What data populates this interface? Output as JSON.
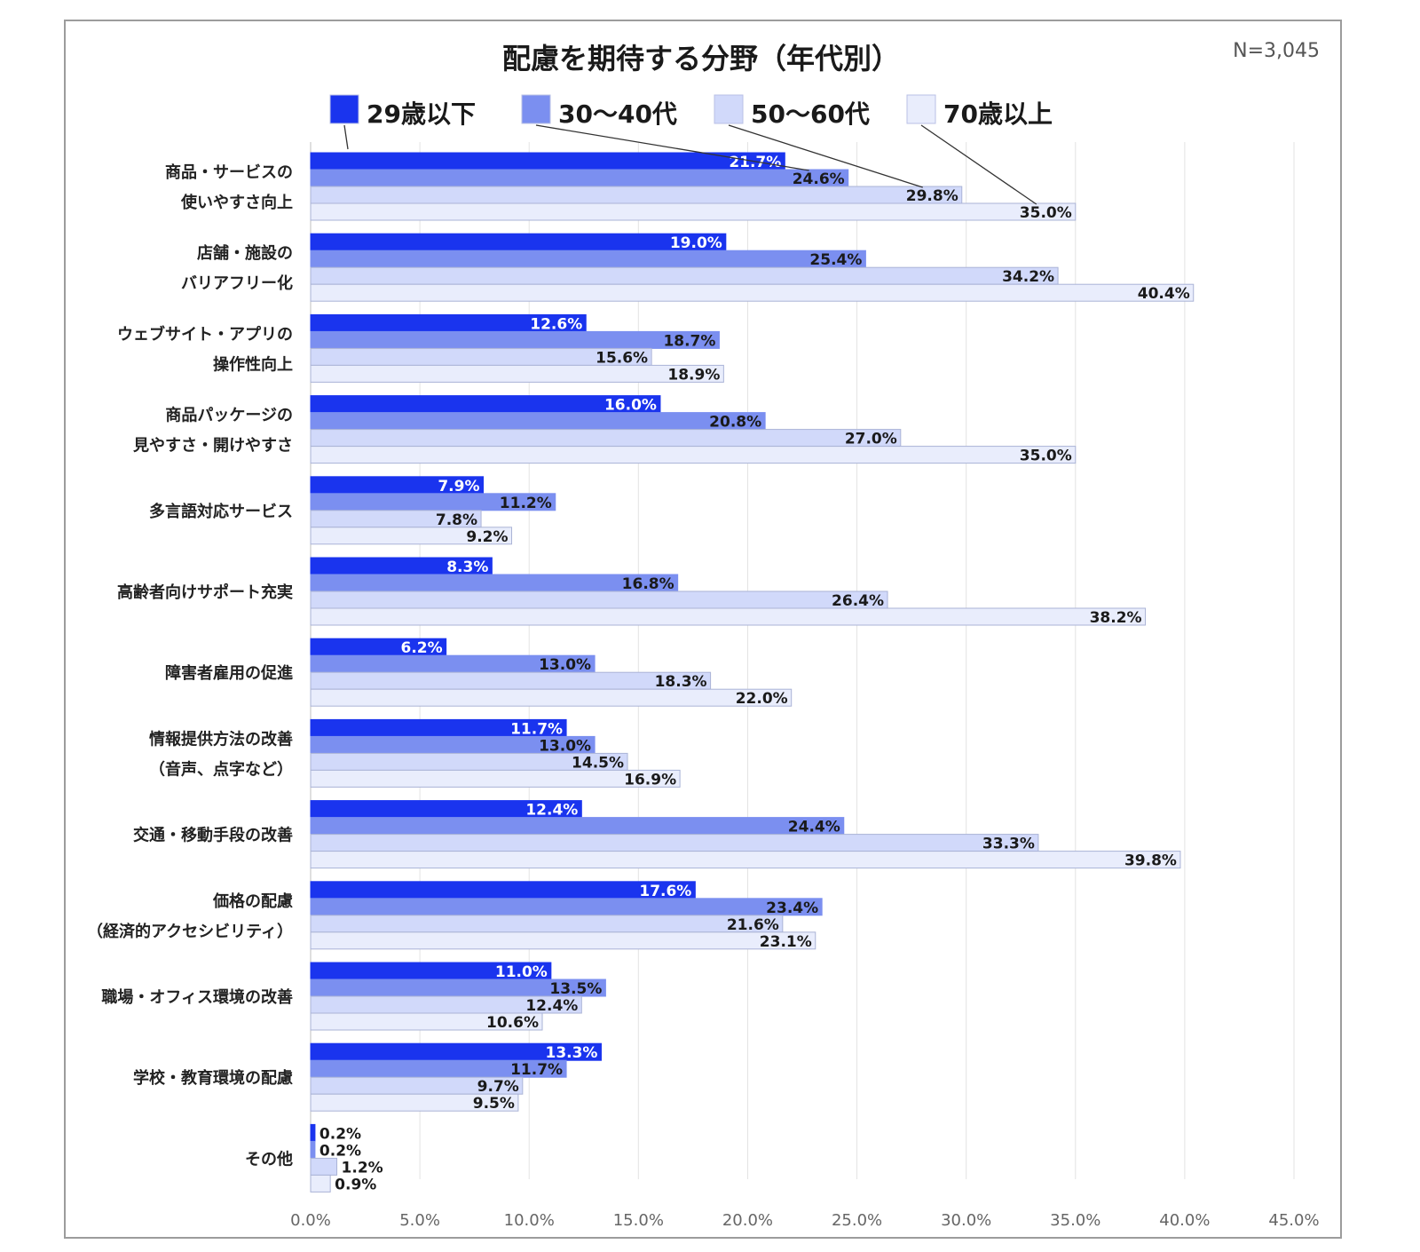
{
  "chart_data": {
    "type": "bar",
    "orientation": "horizontal",
    "title": "配慮を期待する分野（年代別）",
    "sample_size": "N=3,045",
    "categories": [
      [
        "商品・サービスの",
        "使いやすさ向上"
      ],
      [
        "店舗・施設の",
        "バリアフリー化"
      ],
      [
        "ウェブサイト・アプリの",
        "操作性向上"
      ],
      [
        "商品パッケージの",
        "見やすさ・開けやすさ"
      ],
      [
        "多言語対応サービス"
      ],
      [
        "高齢者向けサポート充実"
      ],
      [
        "障害者雇用の促進"
      ],
      [
        "情報提供方法の改善",
        "（音声、点字など）"
      ],
      [
        "交通・移動手段の改善"
      ],
      [
        "価格の配慮",
        "（経済的アクセシビリティ）"
      ],
      [
        "職場・オフィス環境の改善"
      ],
      [
        "学校・教育環境の配慮"
      ],
      [
        "その他"
      ]
    ],
    "series": [
      {
        "name": "29歳以下",
        "color": "#1a34ee",
        "text_color": "#ffffff",
        "values": [
          21.7,
          19.0,
          12.6,
          16.0,
          7.9,
          8.3,
          6.2,
          11.7,
          12.4,
          17.6,
          11.0,
          13.3,
          0.2
        ]
      },
      {
        "name": "30〜40代",
        "color": "#7b8ff0",
        "text_color": "#1a1a1a",
        "values": [
          24.6,
          25.4,
          18.7,
          20.8,
          11.2,
          16.8,
          13.0,
          13.0,
          24.4,
          23.4,
          13.5,
          11.7,
          0.2
        ]
      },
      {
        "name": "50〜60代",
        "color": "#d1d9fa",
        "text_color": "#1a1a1a",
        "values": [
          29.8,
          34.2,
          15.6,
          27.0,
          7.8,
          26.4,
          18.3,
          14.5,
          33.3,
          21.6,
          12.4,
          9.7,
          1.2
        ]
      },
      {
        "name": "70歳以上",
        "color": "#e9edfc",
        "text_color": "#1a1a1a",
        "values": [
          35.0,
          40.4,
          18.9,
          35.0,
          9.2,
          38.2,
          22.0,
          16.9,
          39.8,
          23.1,
          10.6,
          9.5,
          0.9
        ]
      }
    ],
    "xlim": [
      0,
      45
    ],
    "xticks": [
      "0.0%",
      "5.0%",
      "10.0%",
      "15.0%",
      "20.0%",
      "25.0%",
      "30.0%",
      "35.0%",
      "40.0%",
      "45.0%"
    ],
    "grid": true,
    "legend_position": "top"
  }
}
